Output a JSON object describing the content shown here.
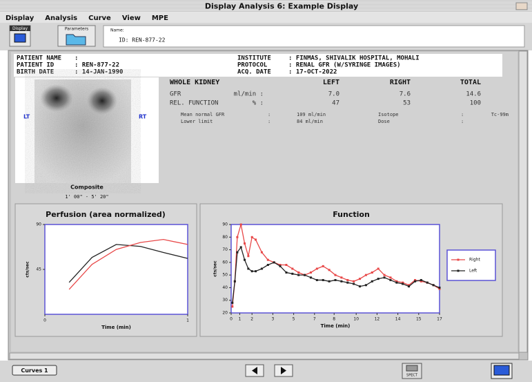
{
  "window": {
    "title": "Display Analysis 6: Example Display",
    "menu": [
      "Display",
      "Analysis",
      "Curve",
      "View",
      "MPE"
    ]
  },
  "toolbar": {
    "buttons": [
      "Display",
      "Parameters"
    ],
    "name_label": "Name:",
    "name_value": "ID: REN-877-22"
  },
  "report": {
    "patient_left": [
      {
        "label": "PATIENT NAME",
        "value": ":"
      },
      {
        "label": "PATIENT ID",
        "value": ": REN-877-22"
      },
      {
        "label": "BIRTH DATE",
        "value": ": 14-JAN-1990"
      }
    ],
    "patient_right": [
      {
        "label": "INSTITUTE",
        "value": ": FINMAS, SHIVALIK HOSPITAL, MOHALI"
      },
      {
        "label": "PROTOCOL",
        "value": ": RENAL GFR (W/SYRINGE IMAGES)"
      },
      {
        "label": "ACQ. DATE",
        "value": ": 17-OCT-2022"
      }
    ],
    "image": {
      "left_label": "LT",
      "right_label": "RT",
      "caption": "Composite",
      "time": "1' 00\" - 5' 20\""
    },
    "kidney_table": {
      "header": [
        "WHOLE KIDNEY",
        "LEFT",
        "RIGHT",
        "TOTAL"
      ],
      "rows": [
        [
          "GFR",
          "ml/min :",
          "7.0",
          "7.6",
          "14.6"
        ],
        [
          "REL. FUNCTION",
          "% :",
          "47",
          "53",
          "100"
        ]
      ],
      "notes": [
        [
          "Mean normal GFR",
          ":",
          "109 ml/min",
          "Isotope",
          ":",
          "Tc-99m"
        ],
        [
          "Lower limit",
          ":",
          "84 ml/min",
          "Dose",
          ":"
        ]
      ]
    }
  },
  "chart_data": [
    {
      "type": "line",
      "title": "Perfusion (area normalized)",
      "x_label": "Time (min)",
      "y_label": "cts/sec",
      "x": [
        0.17,
        0.33,
        0.5,
        0.67,
        0.83,
        1
      ],
      "series": [
        {
          "color": "#222222",
          "values": [
            32,
            57,
            70,
            68,
            62,
            56
          ]
        },
        {
          "color": "#e84848",
          "values": [
            25,
            50,
            65,
            72,
            75,
            70
          ]
        }
      ],
      "xlim": [
        0,
        1
      ],
      "xticks": [
        0,
        1
      ],
      "ylim": [
        0,
        90
      ],
      "yticks": [
        45,
        90
      ],
      "markers": false
    },
    {
      "type": "line",
      "title": "Function",
      "x_label": "Time (min)",
      "y_label": "cts/sec",
      "x": [
        0.1,
        0.3,
        0.5,
        0.8,
        1.1,
        1.4,
        1.7,
        2,
        2.5,
        3,
        3.5,
        4,
        4.5,
        5,
        5.5,
        6,
        6.5,
        7,
        7.5,
        8,
        8.5,
        9,
        9.5,
        10,
        10.5,
        11,
        11.5,
        12,
        12.5,
        13,
        13.5,
        14,
        14.5,
        15,
        15.5,
        16,
        16.5,
        17
      ],
      "series": [
        {
          "name": "Right",
          "color": "#e84848",
          "values": [
            25,
            45,
            80,
            90,
            75,
            65,
            80,
            78,
            68,
            62,
            60,
            58,
            58,
            55,
            52,
            50,
            52,
            55,
            57,
            54,
            50,
            48,
            46,
            45,
            47,
            50,
            52,
            55,
            50,
            48,
            45,
            44,
            42,
            46,
            45,
            44,
            42,
            39
          ]
        },
        {
          "name": "Left",
          "color": "#222222",
          "values": [
            28,
            45,
            68,
            72,
            62,
            55,
            53,
            53,
            55,
            58,
            60,
            57,
            52,
            51,
            50,
            50,
            48,
            46,
            46,
            45,
            46,
            45,
            44,
            43,
            41,
            42,
            45,
            47,
            48,
            46,
            44,
            43,
            41,
            45,
            46,
            44,
            42,
            40
          ]
        }
      ],
      "xlim": [
        0,
        17
      ],
      "xticks": [
        0,
        {
          "value": 0.7,
          "label": "1"
        },
        {
          "value": 1.7,
          "label": "2"
        },
        {
          "value": 3.4,
          "label": "3"
        },
        {
          "value": 5.1,
          "label": "5"
        },
        {
          "value": 6.8,
          "label": "7"
        },
        {
          "value": 8.4,
          "label": "8"
        },
        {
          "value": 10.2,
          "label": "10"
        },
        {
          "value": 11.9,
          "label": "12"
        },
        {
          "value": 13.6,
          "label": "14"
        },
        {
          "value": 15.3,
          "label": "15"
        },
        17
      ],
      "ylim": [
        20,
        90
      ],
      "yticks": [
        20,
        30,
        40,
        50,
        60,
        70,
        80,
        90
      ],
      "markers": true,
      "legend": "right"
    }
  ],
  "bottom": {
    "curves_button": "Curves 1",
    "spect_label": "SPECT"
  }
}
